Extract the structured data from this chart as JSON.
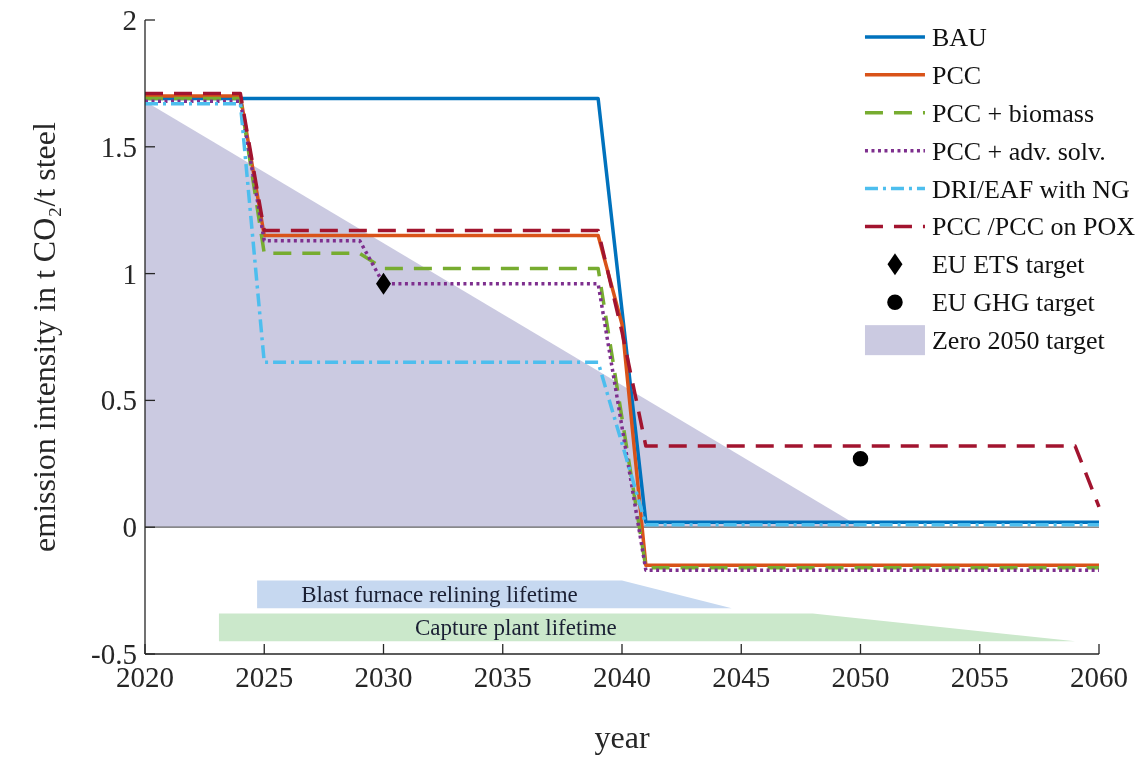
{
  "chart_data": {
    "type": "line",
    "xlabel": "year",
    "ylabel": "emission intensity in t CO₂/t steel",
    "xlim": [
      2020,
      2060
    ],
    "xticks": [
      2020,
      2025,
      2030,
      2035,
      2040,
      2045,
      2050,
      2055,
      2060
    ],
    "ylim": [
      -0.5,
      2
    ],
    "yticks": [
      -0.5,
      0,
      0.5,
      1,
      1.5,
      2
    ],
    "legend": "top right",
    "series": [
      {
        "name": "BAU",
        "color": "#0072bd",
        "line_style": "solid",
        "x": [
          2020,
          2039,
          2041,
          2060
        ],
        "values": [
          1.69,
          1.69,
          0.02,
          0.02
        ]
      },
      {
        "name": "PCC",
        "color": "#d95319",
        "line_style": "solid",
        "x": [
          2020,
          2024,
          2025,
          2039,
          2040,
          2041,
          2060
        ],
        "values": [
          1.7,
          1.7,
          1.15,
          1.15,
          0.8,
          -0.15,
          -0.15
        ]
      },
      {
        "name": "PCC + biomass",
        "color": "#77ac30",
        "line_style": "dashed",
        "x": [
          2020,
          2024,
          2025,
          2029,
          2030,
          2039,
          2041,
          2060
        ],
        "values": [
          1.69,
          1.69,
          1.08,
          1.08,
          1.02,
          1.02,
          -0.16,
          -0.16
        ]
      },
      {
        "name": "PCC + adv. solv.",
        "color": "#7e2f8e",
        "line_style": "dotted",
        "x": [
          2020,
          2024,
          2025,
          2029,
          2030,
          2039,
          2041,
          2060
        ],
        "values": [
          1.68,
          1.68,
          1.13,
          1.13,
          0.96,
          0.96,
          -0.17,
          -0.17
        ]
      },
      {
        "name": "DRI/EAF with NG",
        "color": "#4dbeee",
        "line_style": "dashdot",
        "x": [
          2020,
          2024,
          2025,
          2039,
          2041,
          2060
        ],
        "values": [
          1.67,
          1.67,
          0.65,
          0.65,
          0.01,
          0.01
        ]
      },
      {
        "name": "PCC /PCC on POX",
        "color": "#a2142f",
        "line_style": "dashed",
        "x": [
          2020,
          2024,
          2025,
          2039,
          2040,
          2041,
          2059,
          2060
        ],
        "values": [
          1.71,
          1.71,
          1.17,
          1.17,
          0.77,
          0.32,
          0.32,
          0.08
        ]
      },
      {
        "name": "EU ETS target",
        "type": "scatter",
        "marker": "diamond",
        "color": "#000000",
        "x": [
          2030
        ],
        "values": [
          0.96
        ]
      },
      {
        "name": "EU GHG target",
        "type": "scatter",
        "marker": "circle",
        "color": "#000000",
        "x": [
          2050
        ],
        "values": [
          0.27
        ]
      },
      {
        "name": "Zero 2050 target",
        "type": "area",
        "color": "#cbcae1",
        "x": [
          2020,
          2050
        ],
        "values": [
          1.68,
          0
        ]
      },
      {
        "name": "Blast furnace relining lifetime",
        "type": "area",
        "color": "#c6d8f0",
        "x": [
          2024.7,
          2024.7,
          2040,
          2044.6
        ],
        "values": [
          -0.32,
          -0.21,
          -0.21,
          -0.32
        ]
      },
      {
        "name": "Capture plant lifetime",
        "type": "area",
        "color": "#cbe8cb",
        "x": [
          2023.1,
          2023.1,
          2048,
          2059
        ],
        "values": [
          -0.45,
          -0.34,
          -0.34,
          -0.45
        ]
      }
    ],
    "ref_lines": [
      {
        "axis": "y",
        "value": 0,
        "color": "#666666"
      }
    ]
  }
}
